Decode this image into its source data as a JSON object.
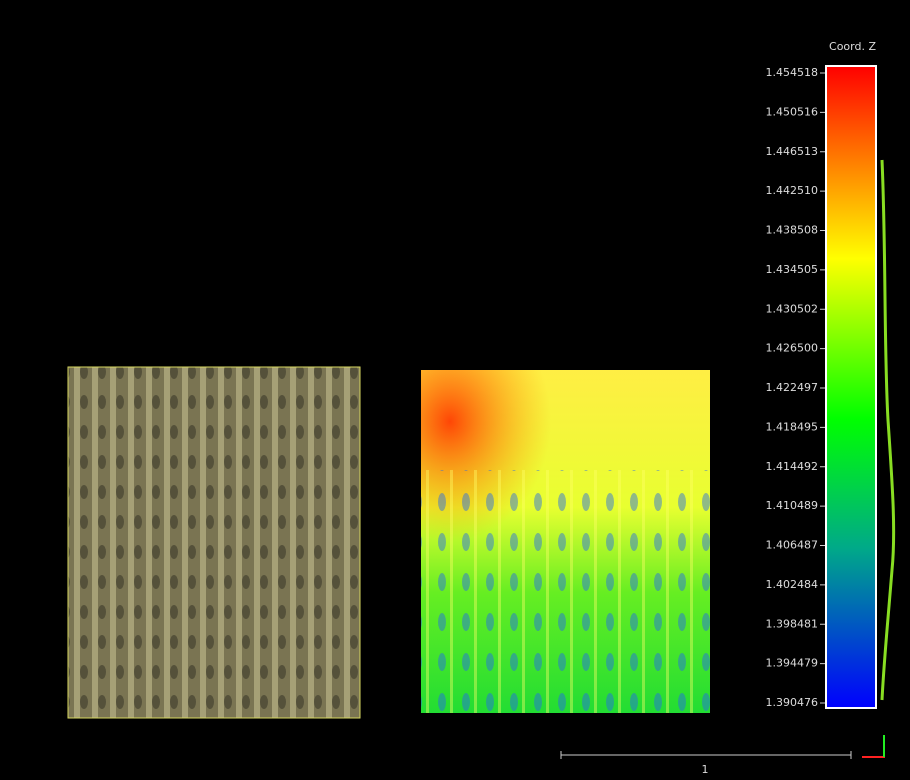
{
  "color_scale": {
    "title": "Coord. Z",
    "labels": [
      "1.454518",
      "1.450516",
      "1.446513",
      "1.442510",
      "1.438508",
      "1.434505",
      "1.430502",
      "1.426500",
      "1.422497",
      "1.418495",
      "1.414492",
      "1.410489",
      "1.406487",
      "1.402484",
      "1.398481",
      "1.394479",
      "1.390476"
    ]
  },
  "scale_bar": {
    "label": "1"
  }
}
